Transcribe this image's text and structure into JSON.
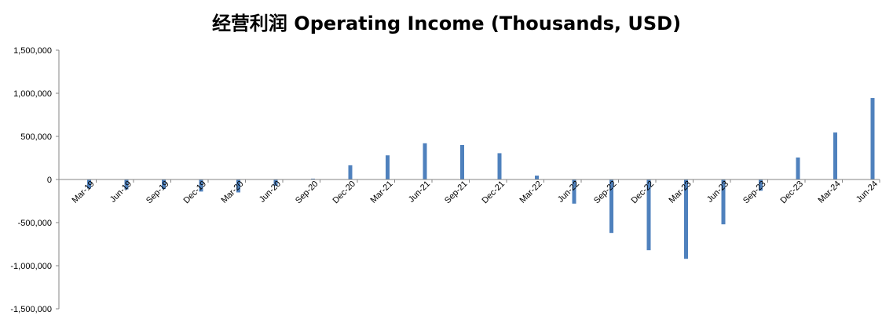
{
  "chart_data": {
    "type": "bar",
    "title": "经营利润 Operating Income (Thousands, USD)",
    "xlabel": "",
    "ylabel": "",
    "ylim": [
      -1500000,
      1500000
    ],
    "yticks": [
      "1,500,000",
      "1,000,000",
      "500,000",
      "0",
      "-500,000",
      "-1,000,000",
      "-1,500,000"
    ],
    "ytick_values": [
      1500000,
      1000000,
      500000,
      0,
      -500000,
      -1000000,
      -1500000
    ],
    "grid": false,
    "legend": "none",
    "bar_color": "#4f81bd",
    "categories": [
      "Mar-19",
      "Jun-19",
      "Sep-19",
      "Dec-19",
      "Mar-20",
      "Jun-20",
      "Sep-20",
      "Dec-20",
      "Mar-21",
      "Jun-21",
      "Sep-21",
      "Dec-21",
      "Mar-22",
      "Jun-22",
      "Sep-22",
      "Dec-22",
      "Mar-23",
      "Jun-23",
      "Sep-23",
      "Dec-23",
      "Mar-24",
      "Jun-24"
    ],
    "values": [
      -105000,
      -115000,
      -110000,
      -140000,
      -150000,
      -75000,
      10000,
      165000,
      280000,
      420000,
      400000,
      305000,
      45000,
      -280000,
      -620000,
      -820000,
      -920000,
      -520000,
      -130000,
      255000,
      545000,
      945000
    ]
  }
}
